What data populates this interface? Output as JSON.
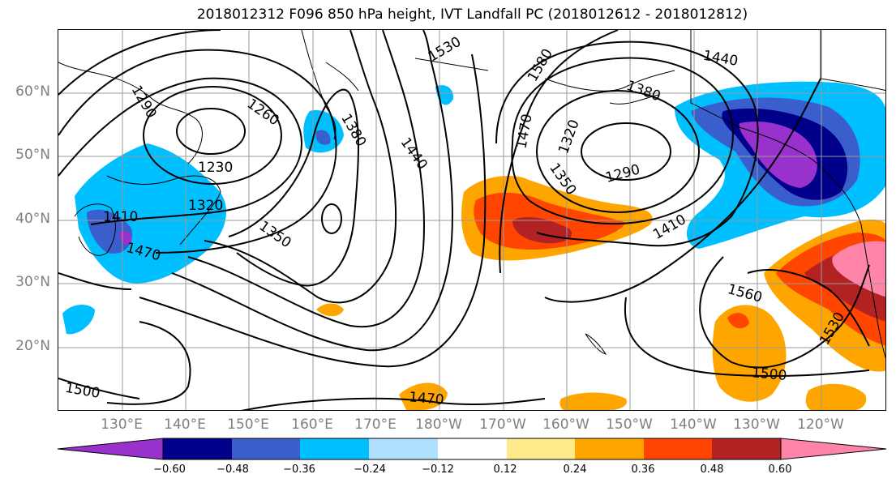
{
  "title": "2018012312 F096 850 hPa height, IVT Landfall PC (2018012612 - 2018012812)",
  "map": {
    "lat_labels": [
      "60°N",
      "50°N",
      "40°N",
      "30°N",
      "20°N"
    ],
    "lon_labels": [
      "130°E",
      "140°E",
      "150°E",
      "160°E",
      "170°E",
      "180°W",
      "170°W",
      "160°W",
      "150°W",
      "140°W",
      "130°W",
      "120°W"
    ],
    "height_contour_labels": [
      "1290",
      "1260",
      "1230",
      "1320",
      "1410",
      "1470",
      "1350",
      "1380",
      "1440",
      "1530",
      "1580",
      "1470",
      "1320",
      "1350",
      "1290",
      "1380",
      "1440",
      "1410",
      "1560",
      "1530",
      "1500",
      "1470",
      "1500"
    ],
    "shading_field": "IVT Landfall PC",
    "contour_field": "850 hPa height"
  },
  "colorbar": {
    "tick_labels": [
      "−0.60",
      "−0.48",
      "−0.36",
      "−0.24",
      "−0.12",
      "0.12",
      "0.24",
      "0.36",
      "0.48",
      "0.60"
    ],
    "colors": [
      "#9932cc",
      "#00008b",
      "#3a5fcd",
      "#00bfff",
      "#b0e0ff",
      "#ffffff",
      "#ffeb8c",
      "#ffa500",
      "#ff4500",
      "#b22222",
      "#ff85a8",
      "#ff85a8"
    ]
  }
}
